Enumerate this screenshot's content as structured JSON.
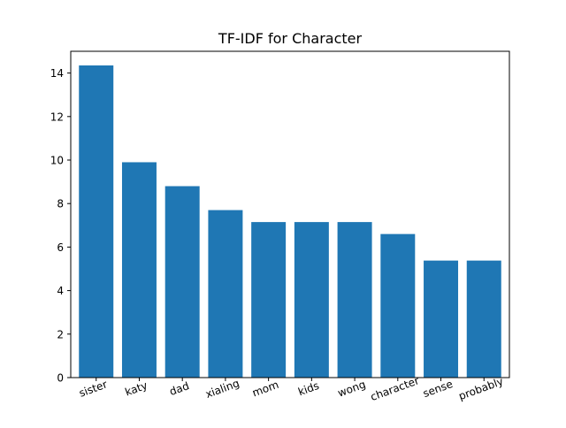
{
  "chart_data": {
    "type": "bar",
    "title": "TF-IDF for Character",
    "xlabel": "",
    "ylabel": "",
    "categories": [
      "sister",
      "katy",
      "dad",
      "xialing",
      "mom",
      "kids",
      "wong",
      "character",
      "sense",
      "probably"
    ],
    "values": [
      14.35,
      9.9,
      8.8,
      7.7,
      7.15,
      7.15,
      7.15,
      6.6,
      5.38,
      5.38
    ],
    "ylim": [
      0,
      15
    ],
    "yticks": [
      0,
      2,
      4,
      6,
      8,
      10,
      12,
      14
    ],
    "bar_color": "#1f77b4",
    "grid": false,
    "xtick_rotation_deg": 20
  }
}
